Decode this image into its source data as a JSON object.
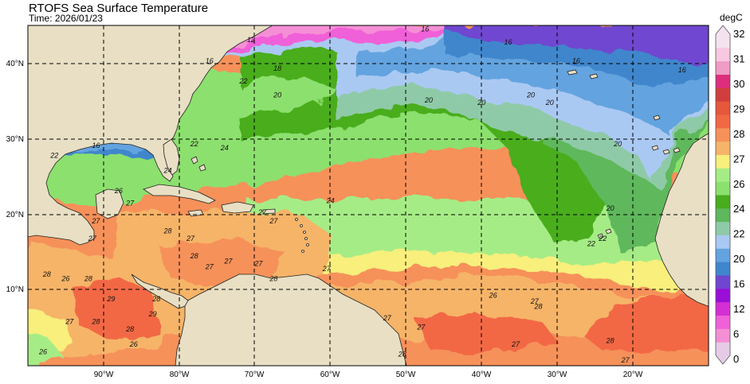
{
  "title": "RTOFS Sea Surface Temperature",
  "subtitle": "Time: 2026/01/23",
  "map": {
    "lon_range": [
      -100,
      -10
    ],
    "lat_range": [
      0,
      45
    ],
    "lat_labels": [
      "10°N",
      "20°N",
      "30°N",
      "40°N"
    ],
    "lon_labels": [
      "90°W",
      "80°W",
      "70°W",
      "60°W",
      "50°W",
      "40°W",
      "30°W",
      "20°W"
    ],
    "land_color": "#e8dfc4",
    "grid_style": "dashed"
  },
  "colorbar": {
    "unit": "degC",
    "labels": [
      "0",
      "6",
      "12",
      "16",
      "20",
      "22",
      "24",
      "26",
      "27",
      "28",
      "29",
      "30",
      "31",
      "32"
    ],
    "colors": [
      "#e6cbe6",
      "#f58fd5",
      "#f060d8",
      "#d42fd4",
      "#9a0ed8",
      "#7046d0",
      "#3f86cc",
      "#63a3df",
      "#aac9f2",
      "#8fcaa8",
      "#5eb85c",
      "#49ad1e",
      "#8ce06e",
      "#a6ec86",
      "#f8ef7c",
      "#f6b468",
      "#f6915a",
      "#f26845",
      "#e6573c",
      "#d03f3d",
      "#dd2e7c",
      "#ef9cc6",
      "#f7c8df",
      "#f4e3ef"
    ]
  },
  "contour_labels": [
    {
      "text": "12",
      "lon": -70.5,
      "lat": 42.8
    },
    {
      "text": "16",
      "lon": -47.5,
      "lat": 44.2
    },
    {
      "text": "16",
      "lon": -36.5,
      "lat": 42.5
    },
    {
      "text": "16",
      "lon": -27.5,
      "lat": 40
    },
    {
      "text": "16",
      "lon": -13.5,
      "lat": 38.8
    },
    {
      "text": "16",
      "lon": -76,
      "lat": 40
    },
    {
      "text": "16",
      "lon": -91,
      "lat": 28.8
    },
    {
      "text": "18",
      "lon": -67,
      "lat": 39
    },
    {
      "text": "20",
      "lon": -67,
      "lat": 35.5
    },
    {
      "text": "20",
      "lon": -47,
      "lat": 34.8
    },
    {
      "text": "20",
      "lon": -40,
      "lat": 34.5
    },
    {
      "text": "20",
      "lon": -33.5,
      "lat": 35.5
    },
    {
      "text": "20",
      "lon": -31,
      "lat": 34.5
    },
    {
      "text": "20",
      "lon": -22,
      "lat": 29
    },
    {
      "text": "20",
      "lon": -23,
      "lat": 20.5
    },
    {
      "text": "22",
      "lon": -71.5,
      "lat": 37.3
    },
    {
      "text": "22",
      "lon": -78,
      "lat": 29
    },
    {
      "text": "22",
      "lon": -96.5,
      "lat": 27.5
    },
    {
      "text": "22",
      "lon": -24,
      "lat": 16.5
    },
    {
      "text": "22",
      "lon": -25.5,
      "lat": 15.8
    },
    {
      "text": "24",
      "lon": -81.5,
      "lat": 25.5
    },
    {
      "text": "24",
      "lon": -74,
      "lat": 28.5
    },
    {
      "text": "24",
      "lon": -60,
      "lat": 21.5
    },
    {
      "text": "26",
      "lon": -88,
      "lat": 22.8
    },
    {
      "text": "26",
      "lon": -95,
      "lat": 11.2
    },
    {
      "text": "26",
      "lon": -38.5,
      "lat": 9
    },
    {
      "text": "26",
      "lon": -98,
      "lat": 1.5
    },
    {
      "text": "26",
      "lon": -86,
      "lat": 2.5
    },
    {
      "text": "27",
      "lon": -86.5,
      "lat": 21.2
    },
    {
      "text": "27",
      "lon": -91,
      "lat": 18.8
    },
    {
      "text": "27",
      "lon": -91.5,
      "lat": 16.5
    },
    {
      "text": "27",
      "lon": -78.5,
      "lat": 16.5
    },
    {
      "text": "27",
      "lon": -69,
      "lat": 20
    },
    {
      "text": "27",
      "lon": -67.5,
      "lat": 18.8
    },
    {
      "text": "27",
      "lon": -76,
      "lat": 12.8
    },
    {
      "text": "27",
      "lon": -73.5,
      "lat": 13.5
    },
    {
      "text": "27",
      "lon": -69.5,
      "lat": 13.2
    },
    {
      "text": "27",
      "lon": -60.5,
      "lat": 12.5
    },
    {
      "text": "27",
      "lon": -94.5,
      "lat": 5.5
    },
    {
      "text": "27",
      "lon": -52.5,
      "lat": 6
    },
    {
      "text": "27",
      "lon": -48,
      "lat": 4.8
    },
    {
      "text": "27",
      "lon": -33,
      "lat": 8.2
    },
    {
      "text": "27",
      "lon": -35.5,
      "lat": 2.5
    },
    {
      "text": "27",
      "lon": -21,
      "lat": 0.4
    },
    {
      "text": "28",
      "lon": -97.5,
      "lat": 11.8
    },
    {
      "text": "28",
      "lon": -92,
      "lat": 11.2
    },
    {
      "text": "28",
      "lon": -81.5,
      "lat": 17.5
    },
    {
      "text": "28",
      "lon": -78,
      "lat": 14.2
    },
    {
      "text": "28",
      "lon": -67.5,
      "lat": 11.2
    },
    {
      "text": "28",
      "lon": -83,
      "lat": 8.5
    },
    {
      "text": "28",
      "lon": -86.5,
      "lat": 4.5
    },
    {
      "text": "28",
      "lon": -91,
      "lat": 5.5
    },
    {
      "text": "28",
      "lon": -50.5,
      "lat": 1.2
    },
    {
      "text": "28",
      "lon": -23,
      "lat": 3
    },
    {
      "text": "28",
      "lon": -32.5,
      "lat": 7.5
    },
    {
      "text": "29",
      "lon": -89,
      "lat": 8.5
    },
    {
      "text": "29",
      "lon": -83.5,
      "lat": 6.5
    }
  ]
}
